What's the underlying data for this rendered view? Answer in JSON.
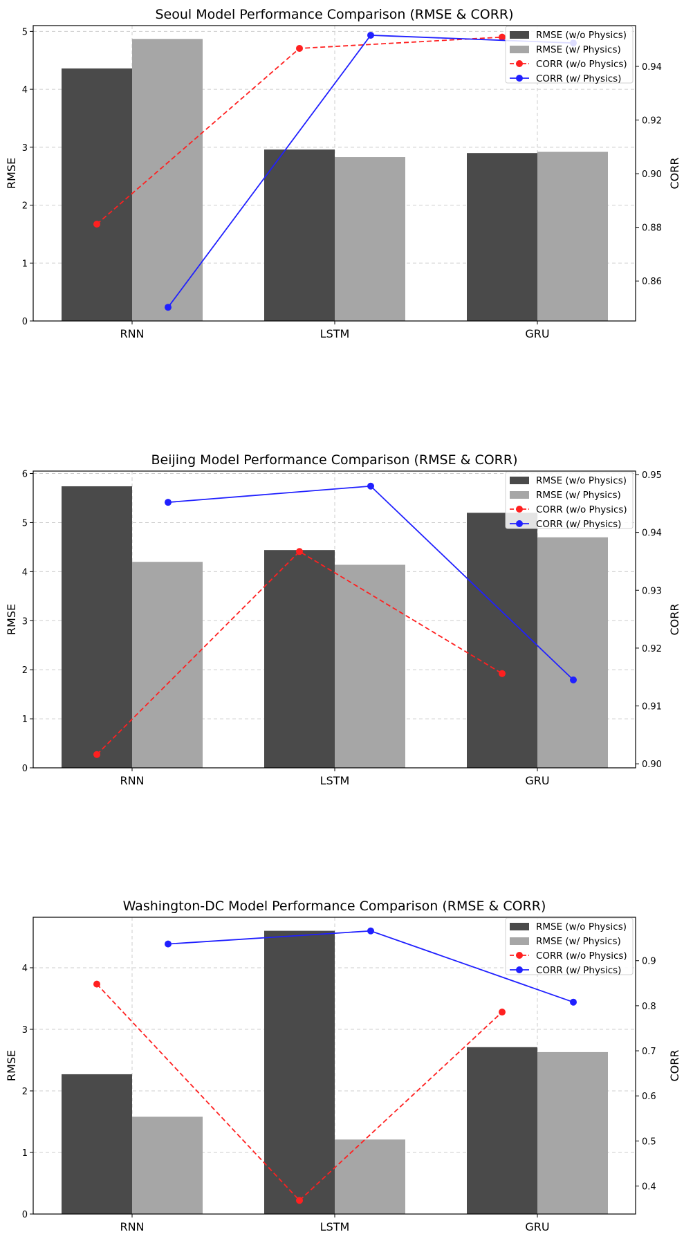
{
  "chart_data": [
    {
      "type": "bar",
      "title": "Seoul Model Performance Comparison (RMSE & CORR)",
      "categories": [
        "RNN",
        "LSTM",
        "GRU"
      ],
      "ylabel": "RMSE",
      "y2label": "CORR",
      "ylim": [
        0,
        5.1
      ],
      "y2lim": [
        0.8451,
        0.9552
      ],
      "yticks": [
        "0",
        "1",
        "2",
        "3",
        "4",
        "5"
      ],
      "y2ticks": [
        "0.86",
        "0.88",
        "0.90",
        "0.92",
        "0.94"
      ],
      "legend_position": "top-right",
      "series": [
        {
          "name": "RMSE (w/o Physics)",
          "kind": "bar",
          "color": "#4a4a4a",
          "values": [
            4.36,
            2.96,
            2.9
          ]
        },
        {
          "name": "RMSE (w/ Physics)",
          "kind": "bar",
          "color": "#a6a6a6",
          "values": [
            4.87,
            2.83,
            2.92
          ]
        },
        {
          "name": "CORR (w/o Physics)",
          "kind": "line",
          "axis": "right",
          "style": "dashed",
          "color": "#ff2020",
          "values": [
            0.8812,
            0.9467,
            0.9509
          ]
        },
        {
          "name": "CORR (w/ Physics)",
          "kind": "line",
          "axis": "right",
          "style": "solid",
          "color": "#2020ff",
          "values": [
            0.8502,
            0.9516,
            0.9487
          ]
        }
      ]
    },
    {
      "type": "bar",
      "title": "Beijing Model Performance Comparison (RMSE & CORR)",
      "categories": [
        "RNN",
        "LSTM",
        "GRU"
      ],
      "ylabel": "RMSE",
      "y2label": "CORR",
      "ylim": [
        0,
        6.05
      ],
      "y2lim": [
        0.8993,
        0.9506
      ],
      "yticks": [
        "0",
        "1",
        "2",
        "3",
        "4",
        "5",
        "6"
      ],
      "y2ticks": [
        "0.90",
        "0.91",
        "0.92",
        "0.93",
        "0.94",
        "0.95"
      ],
      "legend_position": "top-right",
      "series": [
        {
          "name": "RMSE (w/o Physics)",
          "kind": "bar",
          "color": "#4a4a4a",
          "values": [
            5.74,
            4.44,
            5.2
          ]
        },
        {
          "name": "RMSE (w/ Physics)",
          "kind": "bar",
          "color": "#a6a6a6",
          "values": [
            4.2,
            4.14,
            4.7
          ]
        },
        {
          "name": "CORR (w/o Physics)",
          "kind": "line",
          "axis": "right",
          "style": "dashed",
          "color": "#ff2020",
          "values": [
            0.9016,
            0.9367,
            0.9156
          ]
        },
        {
          "name": "CORR (w/ Physics)",
          "kind": "line",
          "axis": "right",
          "style": "solid",
          "color": "#2020ff",
          "values": [
            0.9452,
            0.948,
            0.9145
          ]
        }
      ]
    },
    {
      "type": "bar",
      "title": "Washington-DC Model Performance Comparison (RMSE & CORR)",
      "categories": [
        "RNN",
        "LSTM",
        "GRU"
      ],
      "ylabel": "RMSE",
      "y2label": "CORR",
      "ylim": [
        0,
        4.82
      ],
      "y2lim": [
        0.3379,
        0.9963
      ],
      "yticks": [
        "0",
        "1",
        "2",
        "3",
        "4"
      ],
      "y2ticks": [
        "0.4",
        "0.5",
        "0.6",
        "0.7",
        "0.8",
        "0.9"
      ],
      "legend_position": "top-right",
      "series": [
        {
          "name": "RMSE (w/o Physics)",
          "kind": "bar",
          "color": "#4a4a4a",
          "values": [
            2.27,
            4.6,
            2.71
          ]
        },
        {
          "name": "RMSE (w/ Physics)",
          "kind": "bar",
          "color": "#a6a6a6",
          "values": [
            1.58,
            1.21,
            2.63
          ]
        },
        {
          "name": "CORR (w/o Physics)",
          "kind": "line",
          "axis": "right",
          "style": "dashed",
          "color": "#ff2020",
          "values": [
            0.848,
            0.368,
            0.786
          ]
        },
        {
          "name": "CORR (w/ Physics)",
          "kind": "line",
          "axis": "right",
          "style": "solid",
          "color": "#2020ff",
          "values": [
            0.937,
            0.966,
            0.808
          ]
        }
      ]
    }
  ]
}
